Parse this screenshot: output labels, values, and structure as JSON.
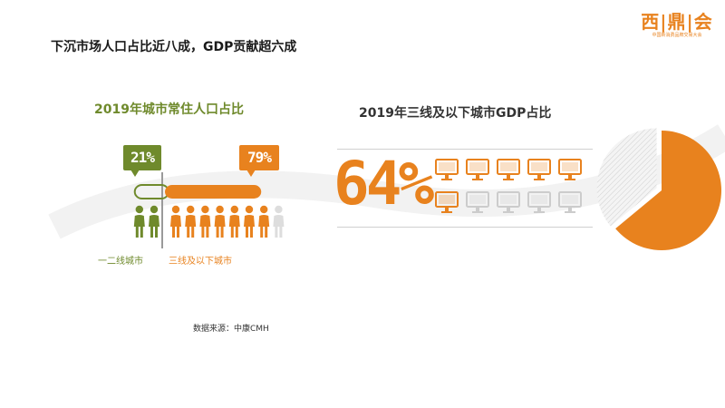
{
  "title": "下沉市场人口占比近八成，GDP贡献超六成",
  "logo": {
    "name": "西|鼎|会",
    "subtitle": "中国新消费品牌交易大会"
  },
  "colors": {
    "orange": "#e8821e",
    "green": "#6f8a2c",
    "grey": "#cccccc"
  },
  "chart_data": [
    {
      "type": "bar",
      "title": "2019年城市常住人口占比",
      "categories": [
        "一二线城市",
        "三线及以下城市"
      ],
      "values": [
        21,
        79
      ],
      "value_labels": [
        "21%",
        "79%"
      ],
      "unit": "%",
      "colors": [
        "#6f8a2c",
        "#e8821e"
      ],
      "ylim": [
        0,
        100
      ]
    },
    {
      "type": "pie",
      "title": "2019年三线及以下城市GDP占比",
      "values": [
        64,
        36
      ],
      "highlight_label": "64%",
      "unit": "%",
      "colors": [
        "#e8821e",
        "#cccccc"
      ]
    }
  ],
  "source": "数据来源：中康CMH"
}
